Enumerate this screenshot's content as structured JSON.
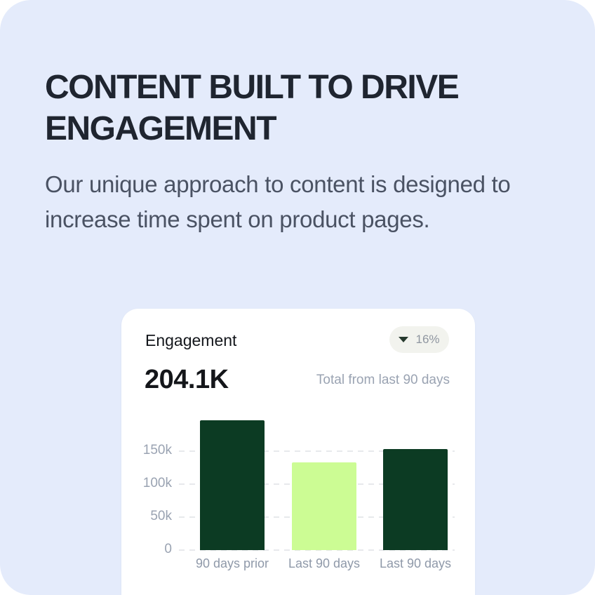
{
  "page": {
    "heading": "CONTENT BUILT TO DRIVE ENGAGEMENT",
    "subheading": "Our unique approach to content is designed to increase time spent on product pages."
  },
  "card": {
    "title": "Engagement",
    "badge": {
      "icon": "triangle-down-icon",
      "value": "16%"
    },
    "total_value": "204.1K",
    "total_caption": "Total from last 90 days"
  },
  "chart_data": {
    "type": "bar",
    "categories": [
      "90 days prior",
      "Last 90 days",
      "Last 90 days"
    ],
    "values": [
      197000,
      133000,
      153000
    ],
    "bar_colors": [
      "#0c3b23",
      "#ccfc94",
      "#0c3b23"
    ],
    "ytick_labels": [
      "150k",
      "100k",
      "50k",
      "0"
    ],
    "ytick_values": [
      150000,
      100000,
      50000,
      0
    ],
    "ylim": [
      0,
      200000
    ],
    "grid": "dashed-horizontal",
    "legend": "none",
    "title": "Engagement",
    "xlabel": "",
    "ylabel": ""
  },
  "colors": {
    "panel_bg": "#e4ebfb",
    "card_bg": "#ffffff",
    "heading_text": "#1f2530",
    "body_text": "#4a5263",
    "dark_green": "#0c3b23",
    "light_green": "#ccfc94",
    "axis_text": "#9aa3b2",
    "gridline": "#e7e9ec",
    "badge_bg": "#f2f3ee",
    "badge_text": "#8f96a0"
  }
}
